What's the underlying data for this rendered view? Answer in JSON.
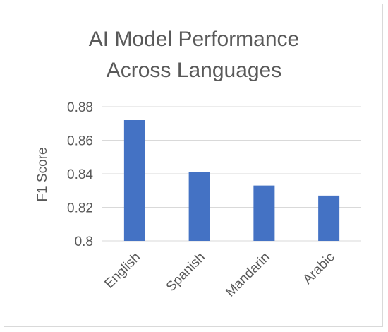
{
  "chart_data": {
    "type": "bar",
    "title_lines": [
      "AI Model Performance",
      "Across Languages"
    ],
    "xlabel": "",
    "ylabel": "F1 Score",
    "categories": [
      "English",
      "Spanish",
      "Mandarin",
      "Arabic"
    ],
    "values": [
      0.872,
      0.841,
      0.833,
      0.827
    ],
    "ylim": [
      0.8,
      0.88
    ],
    "yticks": [
      "0.8",
      "0.82",
      "0.84",
      "0.86",
      "0.88"
    ],
    "grid": true,
    "legend": "none",
    "bar_color": "#4472C4",
    "grid_color": "#D9D9D9"
  }
}
